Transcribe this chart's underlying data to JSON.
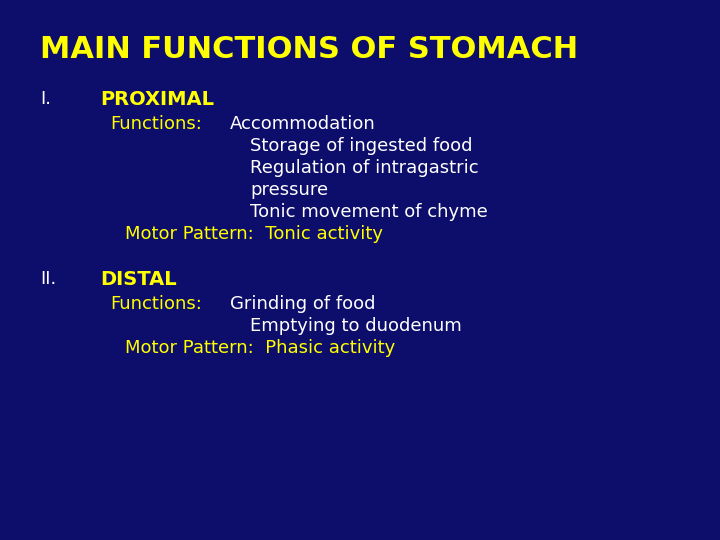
{
  "title": "MAIN FUNCTIONS OF STOMACH",
  "bg_color": "#0d0d6b",
  "title_color": "#ffff00",
  "title_fontsize": 22,
  "white_color": "#ffffff",
  "yellow_color": "#ffff00",
  "section_I_label": "I.",
  "section_I_header": "PROXIMAL",
  "section_I_functions_label": "Functions:",
  "section_I_items": [
    "Accommodation",
    "Storage of ingested food",
    "Regulation of intragastric",
    "pressure",
    "Tonic movement of chyme"
  ],
  "section_I_motor": "Motor Pattern:  Tonic activity",
  "section_II_label": "II.",
  "section_II_header": "DISTAL",
  "section_II_functions_label": "Functions:",
  "section_II_items": [
    "Grinding of food",
    "Emptying to duodenum"
  ],
  "section_II_motor": "Motor Pattern:  Phasic activity",
  "body_fontsize": 13,
  "header_fontsize": 14
}
